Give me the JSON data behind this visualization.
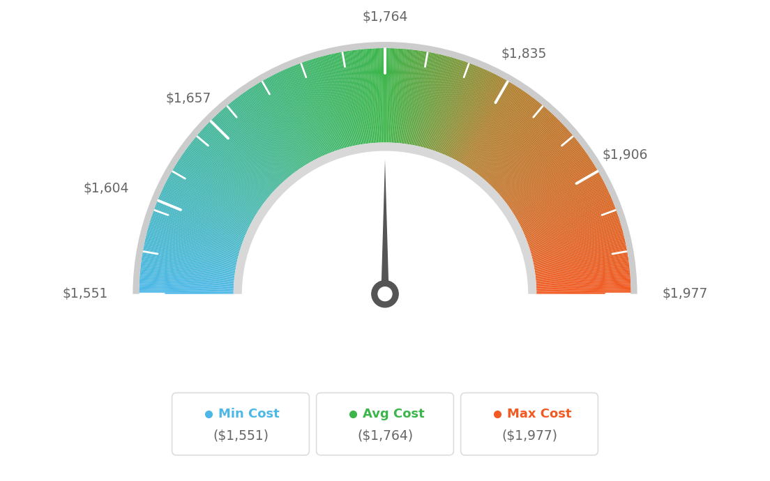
{
  "min_val": 1551,
  "max_val": 1977,
  "avg_val": 1764,
  "tick_labels": [
    "$1,551",
    "$1,604",
    "$1,657",
    "$1,764",
    "$1,835",
    "$1,906",
    "$1,977"
  ],
  "tick_values": [
    1551,
    1604,
    1657,
    1764,
    1835,
    1906,
    1977
  ],
  "min_cost_label": "Min Cost",
  "avg_cost_label": "Avg Cost",
  "max_cost_label": "Max Cost",
  "min_cost_value": "($1,551)",
  "avg_cost_value": "($1,764)",
  "max_cost_value": "($1,977)",
  "min_color": "#4db8e8",
  "avg_color": "#3cb54a",
  "max_color": "#f15a22",
  "needle_color": "#555555",
  "border_color": "#cccccc",
  "label_color": "#666666",
  "box_border_color": "#dddddd",
  "box_value_color": "#666666"
}
